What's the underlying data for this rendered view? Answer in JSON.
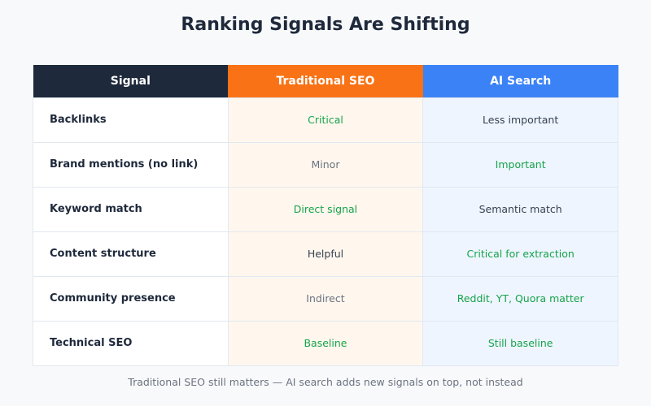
{
  "title": "Ranking Signals Are Shifting",
  "columns": [
    "Signal",
    "Traditional SEO",
    "AI Search"
  ],
  "rows": [
    {
      "signal": "Backlinks",
      "traditional": "Critical",
      "traditional_tone": "good",
      "ai": "Less important",
      "ai_tone": "neutral"
    },
    {
      "signal": "Brand mentions (no link)",
      "traditional": "Minor",
      "traditional_tone": "muted",
      "ai": "Important",
      "ai_tone": "good"
    },
    {
      "signal": "Keyword match",
      "traditional": "Direct signal",
      "traditional_tone": "good",
      "ai": "Semantic match",
      "ai_tone": "neutral"
    },
    {
      "signal": "Content structure",
      "traditional": "Helpful",
      "traditional_tone": "neutral",
      "ai": "Critical for extraction",
      "ai_tone": "good"
    },
    {
      "signal": "Community presence",
      "traditional": "Indirect",
      "traditional_tone": "muted",
      "ai": "Reddit, YT, Quora matter",
      "ai_tone": "good"
    },
    {
      "signal": "Technical SEO",
      "traditional": "Baseline",
      "traditional_tone": "good",
      "ai": "Still baseline",
      "ai_tone": "good"
    }
  ],
  "colors": {
    "header_signal": "#1e293b",
    "header_traditional": "#f97316",
    "header_ai": "#3b82f6",
    "positive_text": "#16a34a",
    "muted_text": "#6b7280"
  },
  "footnote": "Traditional SEO still matters — AI search adds new signals on top, not instead"
}
